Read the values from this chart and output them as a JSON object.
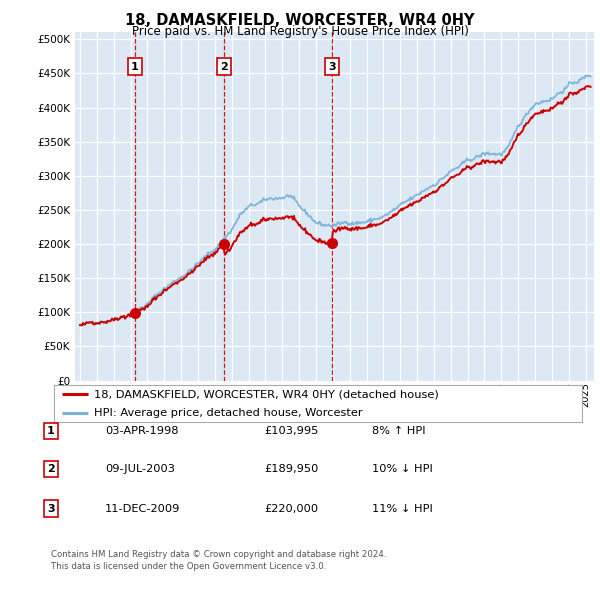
{
  "title": "18, DAMASKFIELD, WORCESTER, WR4 0HY",
  "subtitle": "Price paid vs. HM Land Registry's House Price Index (HPI)",
  "background_color": "#dce9f5",
  "plot_bg_color": "#dce9f5",
  "sale_color": "#cc0000",
  "hpi_color": "#7ab3d9",
  "ylim": [
    0,
    500000
  ],
  "yticks": [
    0,
    50000,
    100000,
    150000,
    200000,
    250000,
    300000,
    350000,
    400000,
    450000,
    500000
  ],
  "sales": [
    {
      "date_num": 1998.25,
      "price": 103995,
      "label": "1"
    },
    {
      "date_num": 2003.52,
      "price": 189950,
      "label": "2"
    },
    {
      "date_num": 2009.94,
      "price": 220000,
      "label": "3"
    }
  ],
  "table_rows": [
    [
      "1",
      "03-APR-1998",
      "£103,995",
      "8% ↑ HPI"
    ],
    [
      "2",
      "09-JUL-2003",
      "£189,950",
      "10% ↓ HPI"
    ],
    [
      "3",
      "11-DEC-2009",
      "£220,000",
      "11% ↓ HPI"
    ]
  ],
  "legend_line1": "18, DAMASKFIELD, WORCESTER, WR4 0HY (detached house)",
  "legend_line2": "HPI: Average price, detached house, Worcester",
  "footer": "Contains HM Land Registry data © Crown copyright and database right 2024.\nThis data is licensed under the Open Government Licence v3.0.",
  "xmin": 1994.7,
  "xmax": 2025.5
}
